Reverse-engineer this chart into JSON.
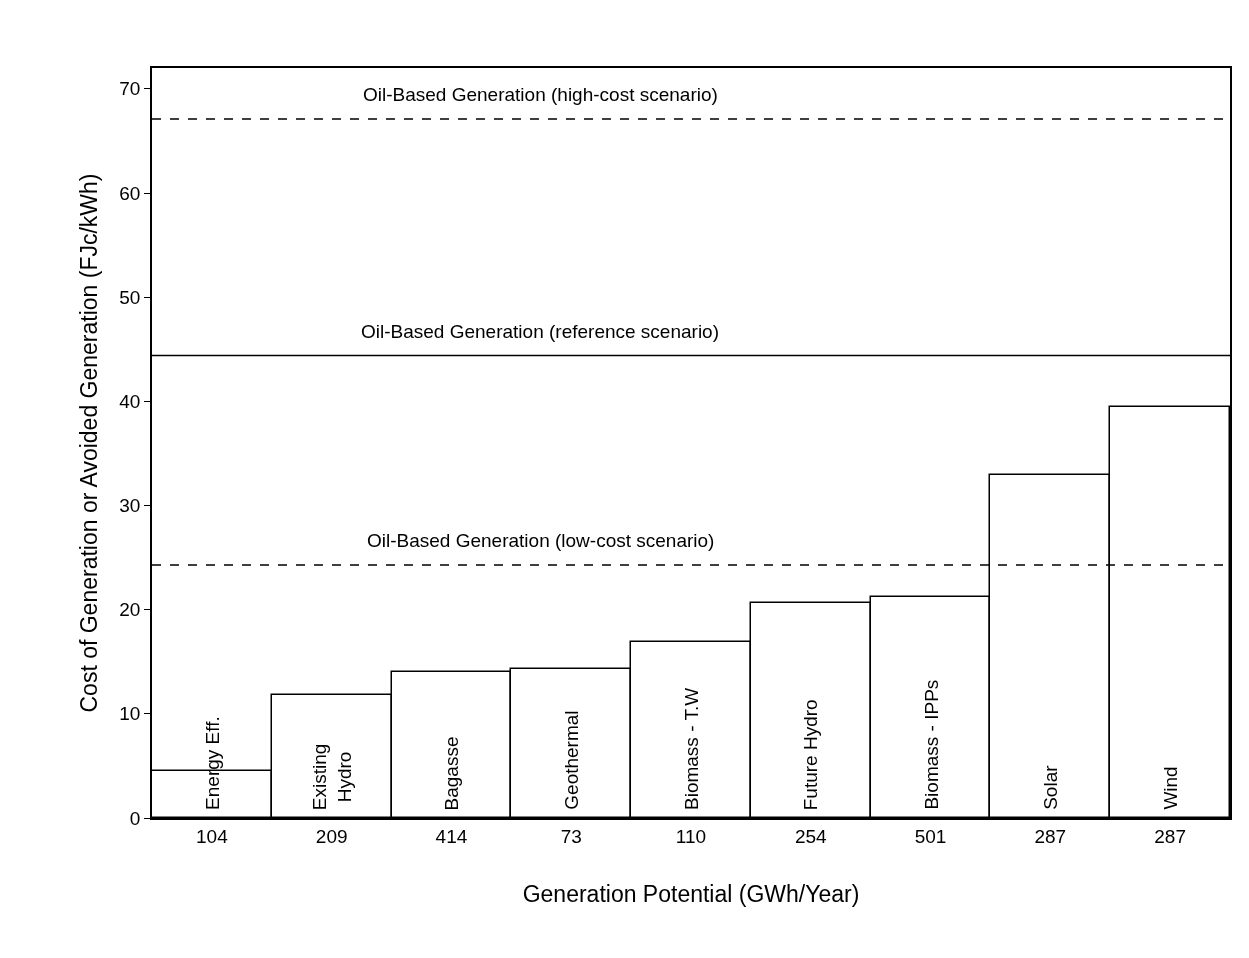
{
  "chart_data": {
    "type": "bar",
    "xlabel": "Generation Potential (GWh/Year)",
    "ylabel": "Cost of Generation or Avoided Generation (FJc/kWh)",
    "categories": [
      "104",
      "209",
      "414",
      "73",
      "110",
      "254",
      "501",
      "287",
      "287"
    ],
    "values": [
      4.5,
      11.8,
      14.0,
      14.3,
      16.9,
      20.6,
      21.2,
      32.9,
      39.5
    ],
    "color": "#ffffff",
    "annotations": [
      "Energy Eff.",
      "Existing\nHydro",
      "Bagasse",
      "Geothermal",
      "Biomass - T.W",
      "Future Hydro",
      "Biomass - IPPs",
      "Solar",
      "Wind"
    ],
    "ylim": [
      0,
      72
    ],
    "yticks": [
      0,
      10,
      20,
      30,
      40,
      50,
      60,
      70
    ],
    "ref_lines": [
      {
        "axis": "y",
        "value": 67.1,
        "label": "Oil-Based Generation (high-cost scenario)",
        "line_style": "dashed",
        "color": "#000000"
      },
      {
        "axis": "y",
        "value": 44.4,
        "label": "Oil-Based Generation (reference scenario)",
        "line_style": "solid",
        "color": "#000000"
      },
      {
        "axis": "y",
        "value": 24.3,
        "label": "Oil-Based Generation (low-cost scenario)",
        "line_style": "dashed",
        "color": "#000000"
      }
    ]
  }
}
